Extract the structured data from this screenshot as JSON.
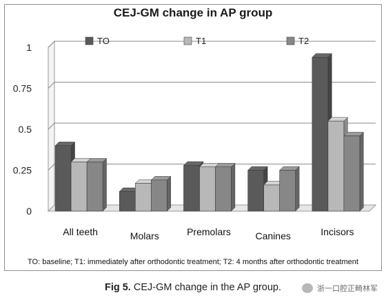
{
  "chart_data": {
    "type": "bar",
    "title": "CEJ-GM change in AP group",
    "categories": [
      "All teeth",
      "Molars",
      "Premolars",
      "Canines",
      "Incisors"
    ],
    "series": [
      {
        "name": "TO",
        "values": [
          0.4,
          0.12,
          0.28,
          0.25,
          0.94
        ],
        "color": "#5a5a5a"
      },
      {
        "name": "T1",
        "values": [
          0.3,
          0.17,
          0.27,
          0.16,
          0.55
        ],
        "color": "#b8b8b8"
      },
      {
        "name": "T2",
        "values": [
          0.3,
          0.19,
          0.27,
          0.25,
          0.46
        ],
        "color": "#878787"
      }
    ],
    "yticks": [
      "0",
      "0.25",
      "0.5",
      "0.75",
      "1"
    ],
    "ylim": [
      0,
      1
    ],
    "grid": true,
    "legend": "top",
    "footnote": "TO: baseline; T1: immediately after orthodontic treatment; T2: 4 months after orthodontic treatment"
  },
  "caption": {
    "label": "Fig 5.",
    "text": "CEJ-GM change in the AP group."
  },
  "watermark": {
    "text": "浙一口腔正畸林军",
    "icon": "wechat-icon"
  }
}
